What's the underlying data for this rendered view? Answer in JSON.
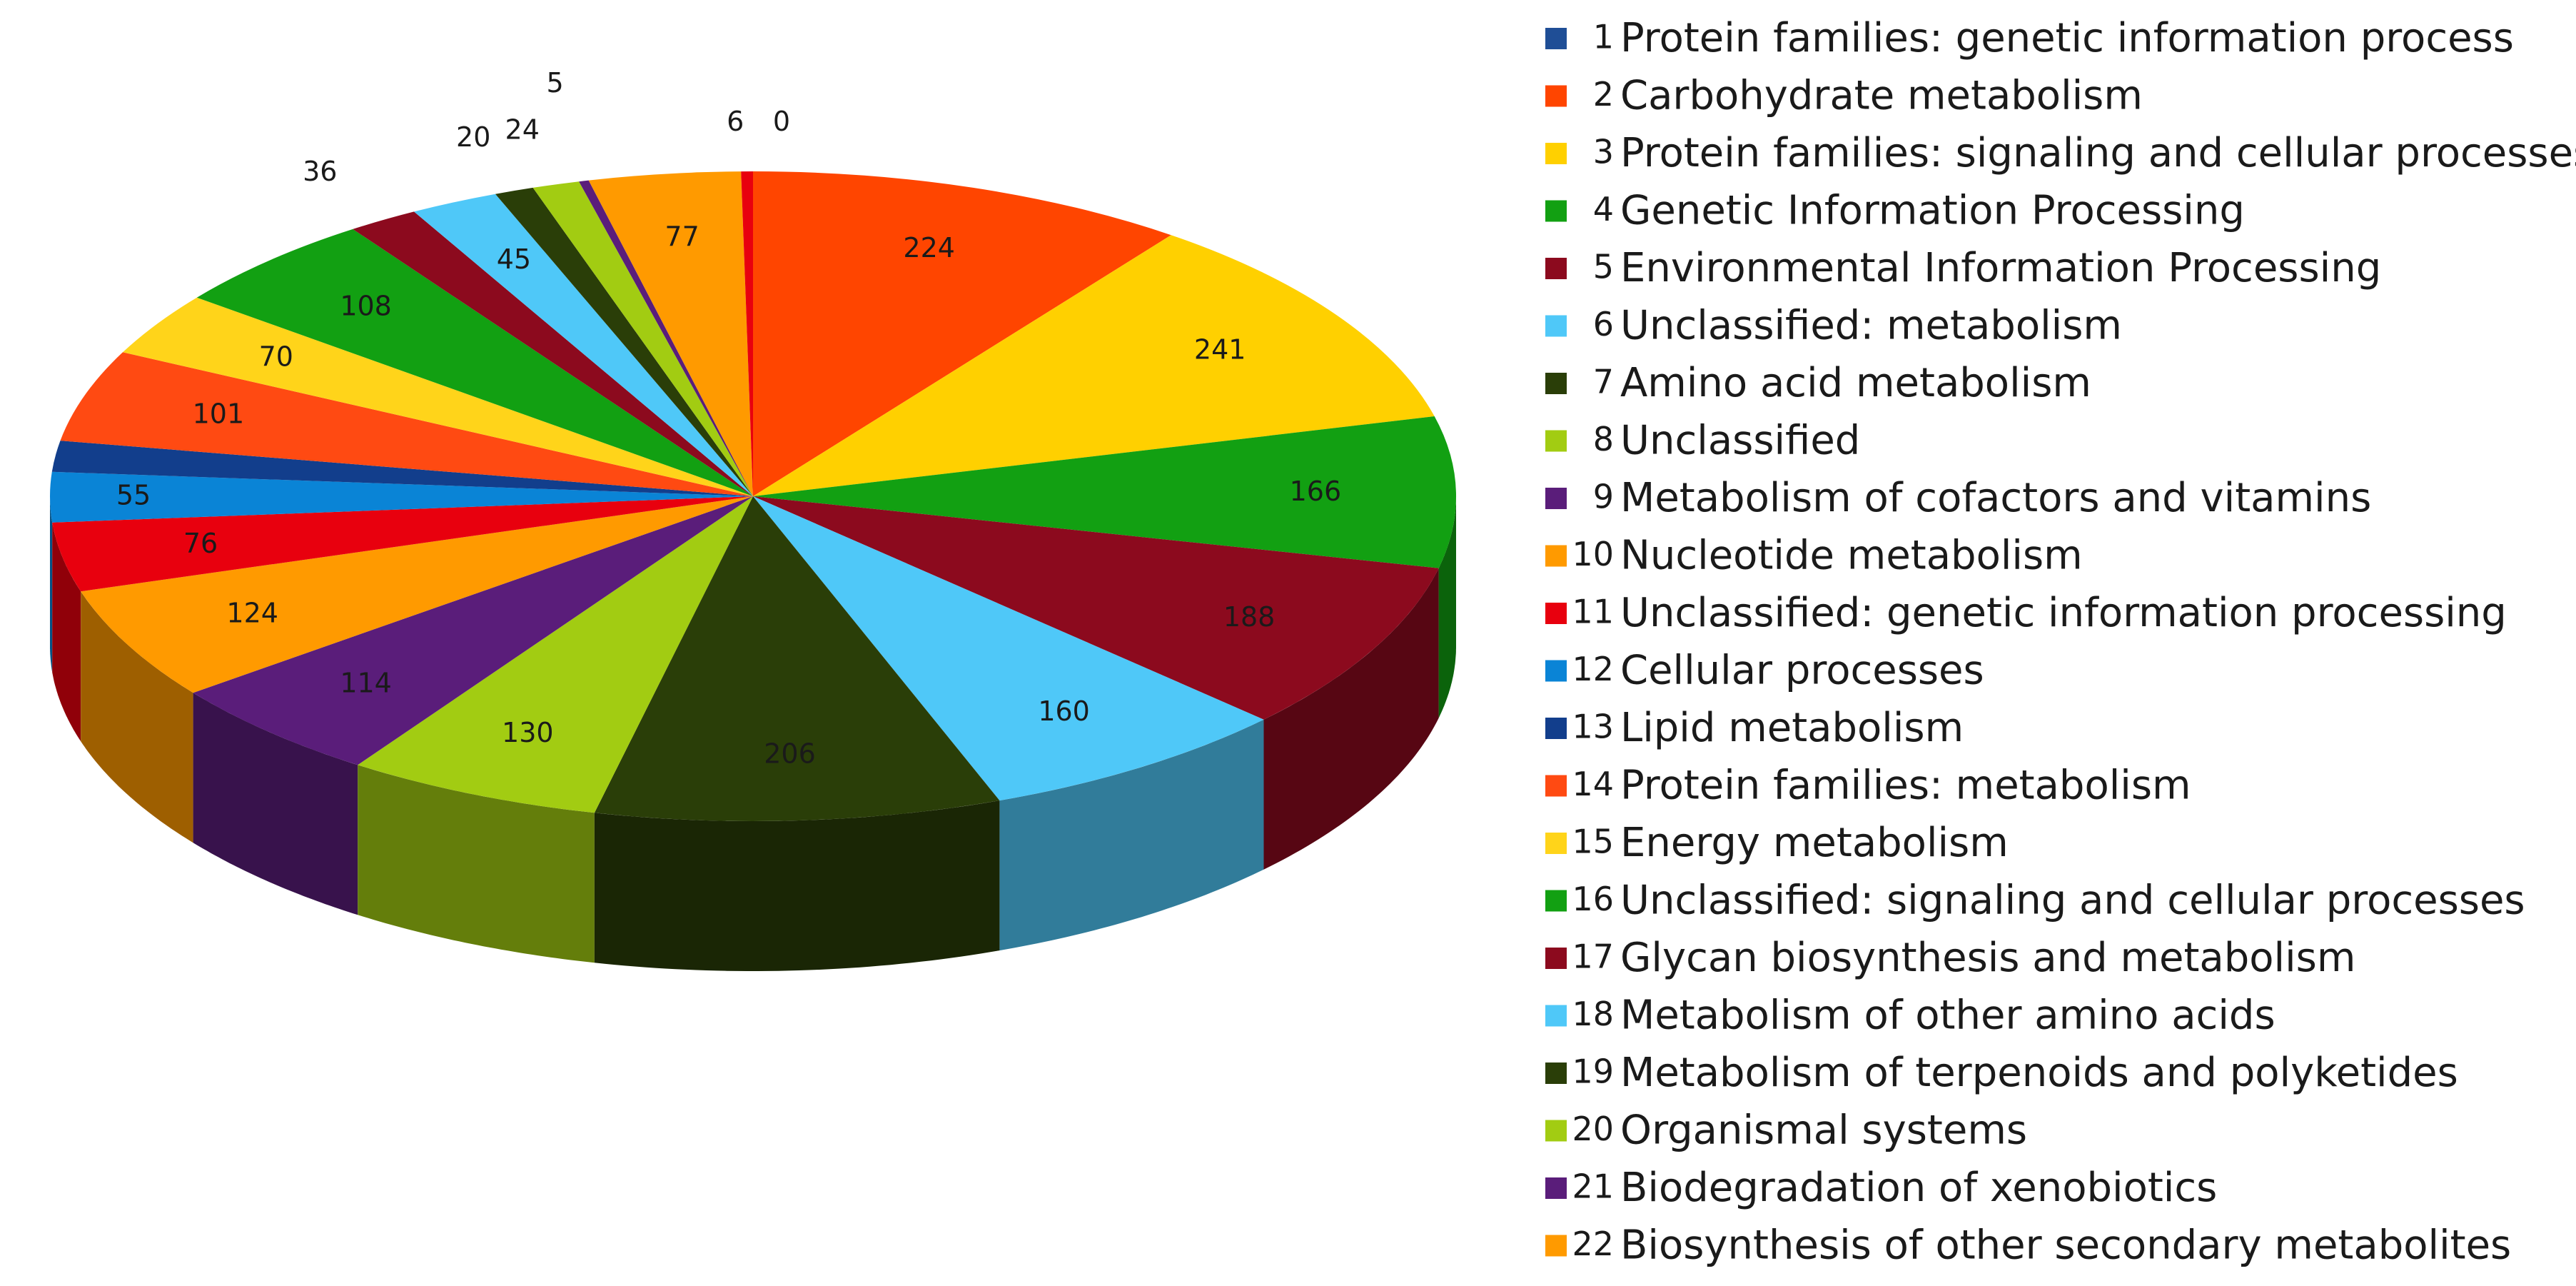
{
  "chart_data": {
    "type": "pie",
    "title": "",
    "legend_position": "right",
    "slices": [
      {
        "value": 0,
        "color": "#1F4E96",
        "legend_index": "1",
        "legend_label": "Protein families: genetic information process"
      },
      {
        "value": 224,
        "color": "#FF4500",
        "legend_index": "2",
        "legend_label": "Carbohydrate metabolism"
      },
      {
        "value": 241,
        "color": "#FFD000",
        "legend_index": "3",
        "legend_label": "Protein families: signaling and cellular processes"
      },
      {
        "value": 166,
        "color": "#12A012",
        "legend_index": "4",
        "legend_label": "Genetic Information Processing"
      },
      {
        "value": 188,
        "color": "#8C0A1E",
        "legend_index": "5",
        "legend_label": "Environmental Information Processing"
      },
      {
        "value": 160,
        "color": "#4FC8F8",
        "legend_index": "6",
        "legend_label": "Unclassified: metabolism"
      },
      {
        "value": 206,
        "color": "#2A3E08",
        "legend_index": "7",
        "legend_label": "Amino acid metabolism"
      },
      {
        "value": 130,
        "color": "#A2CC12",
        "legend_index": "8",
        "legend_label": "Unclassified"
      },
      {
        "value": 114,
        "color": "#5A1D7A",
        "legend_index": "9",
        "legend_label": "Metabolism of cofactors and vitamins"
      },
      {
        "value": 124,
        "color": "#FF9A00",
        "legend_index": "10",
        "legend_label": "Nucleotide metabolism"
      },
      {
        "value": 76,
        "color": "#E8000E",
        "legend_index": "11",
        "legend_label": "Unclassified: genetic information processing"
      },
      {
        "value": 55,
        "color": "#0A84D6",
        "legend_index": "12",
        "legend_label": "Cellular processes"
      },
      {
        "value": 34,
        "color": "#123E8C",
        "legend_index": "13",
        "legend_label": "Lipid metabolism"
      },
      {
        "value": 101,
        "color": "#FF4A12",
        "legend_index": "14",
        "legend_label": "Protein families: metabolism"
      },
      {
        "value": 70,
        "color": "#FFD41A",
        "legend_index": "15",
        "legend_label": "Energy metabolism"
      },
      {
        "value": 108,
        "color": "#12A012",
        "legend_index": "16",
        "legend_label": "Unclassified: signaling and cellular processes"
      },
      {
        "value": 36,
        "color": "#8C0A1E",
        "legend_index": "17",
        "legend_label": "Glycan biosynthesis and metabolism"
      },
      {
        "value": 45,
        "color": "#4FC8F8",
        "legend_index": "18",
        "legend_label": "Metabolism of other amino acids"
      },
      {
        "value": 20,
        "color": "#2A3E08",
        "legend_index": "19",
        "legend_label": "Metabolism of terpenoids and polyketides"
      },
      {
        "value": 24,
        "color": "#A2CC12",
        "legend_index": "20",
        "legend_label": "Organismal systems"
      },
      {
        "value": 5,
        "color": "#5A1D7A",
        "legend_index": "21",
        "legend_label": "Biodegradation of xenobiotics"
      },
      {
        "value": 77,
        "color": "#FF9A00",
        "legend_index": "22",
        "legend_label": "Biosynthesis of other secondary metabolites"
      },
      {
        "value": 6,
        "color": "#E8000E",
        "legend_index": "",
        "legend_label": ""
      }
    ]
  }
}
